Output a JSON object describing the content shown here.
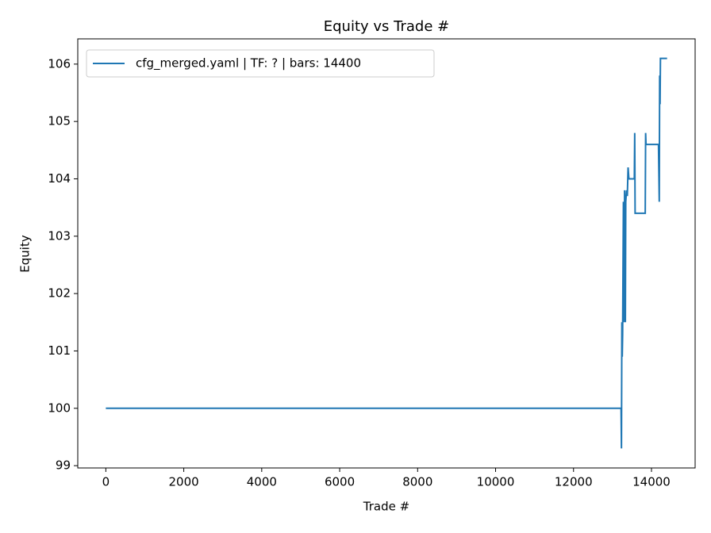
{
  "chart_data": {
    "type": "line",
    "title": "Equity vs Trade #",
    "xlabel": "Trade #",
    "ylabel": "Equity",
    "x": [
      0,
      13220,
      13230,
      13240,
      13250,
      13260,
      13280,
      13300,
      13310,
      13330,
      13340,
      13360,
      13380,
      13400,
      13420,
      13560,
      13570,
      13580,
      13840,
      13850,
      13860,
      14180,
      14200,
      14210,
      14220,
      14230,
      14400
    ],
    "series": [
      {
        "name": "cfg_merged.yaml | TF: ? | bars: 14400",
        "color": "#1f77b4",
        "values": [
          100,
          100,
          99.3,
          101.5,
          100.9,
          101.3,
          103.6,
          101.5,
          103.8,
          101.5,
          103.6,
          103.8,
          103.7,
          104.2,
          104.0,
          104.0,
          104.8,
          103.4,
          103.4,
          104.8,
          104.6,
          104.6,
          103.6,
          105.8,
          105.3,
          106.1,
          106.1
        ]
      }
    ],
    "xlim": [
      -720,
      15120
    ],
    "ylim": [
      98.96,
      106.44
    ],
    "xticks": [
      0,
      2000,
      4000,
      6000,
      8000,
      10000,
      12000,
      14000
    ],
    "yticks": [
      99,
      100,
      101,
      102,
      103,
      104,
      105,
      106
    ],
    "grid": false,
    "legend": "upper left"
  }
}
